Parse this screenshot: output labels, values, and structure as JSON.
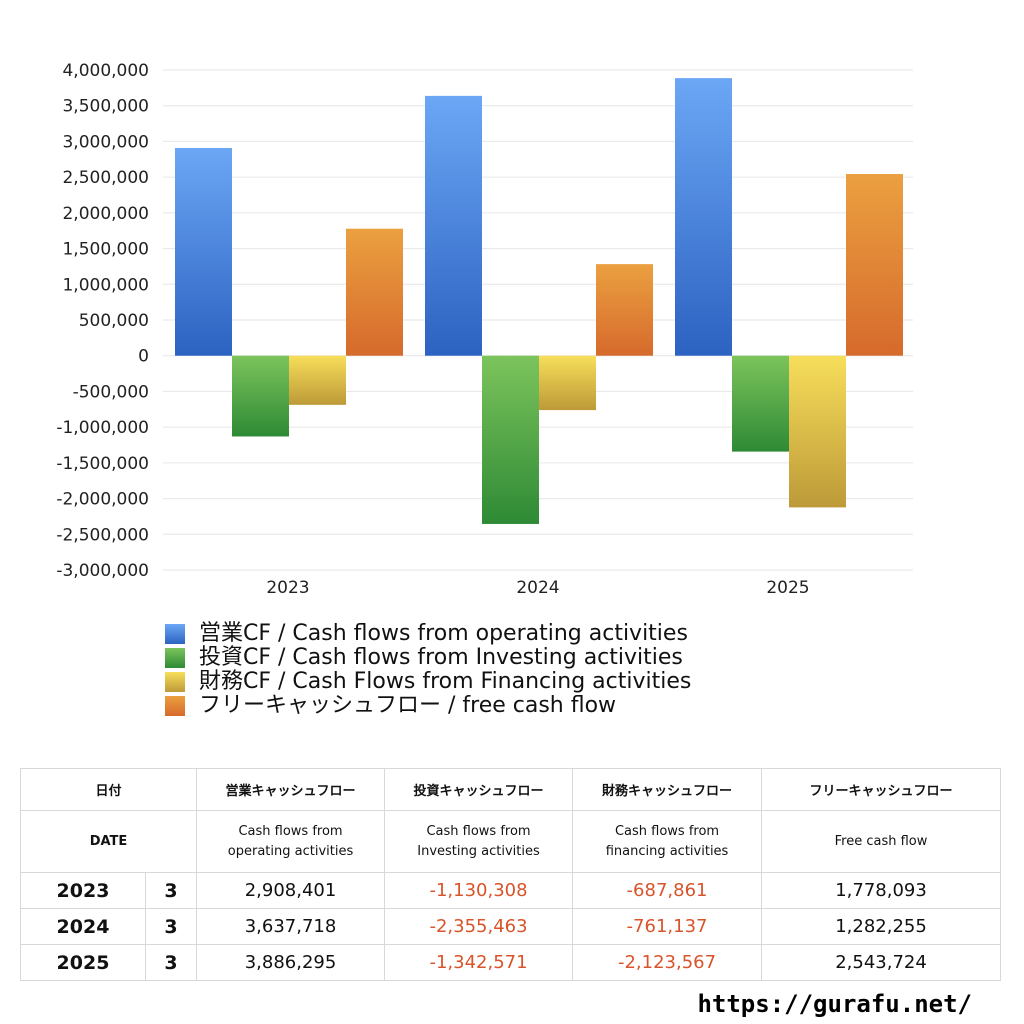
{
  "chart_data": {
    "type": "bar",
    "categories": [
      "2023",
      "2024",
      "2025"
    ],
    "series": [
      {
        "name": "営業CF / Cash flows from operating activities",
        "values": [
          2908401,
          3637718,
          3886295
        ]
      },
      {
        "name": "投資CF / Cash flows from Investing activities",
        "values": [
          -1130308,
          -2355463,
          -1342571
        ]
      },
      {
        "name": "財務CF / Cash Flows from Financing activities",
        "values": [
          -687861,
          -761137,
          -2123567
        ]
      },
      {
        "name": "フリーキャッシュフロー / free cash flow",
        "values": [
          1778093,
          1282255,
          2543724
        ]
      }
    ],
    "ylim": [
      -3000000,
      4000000
    ],
    "ytick_step": 500000,
    "grid": true,
    "legend_position": "bottom-left",
    "colors": [
      [
        "#6ba7f5",
        "#2c62c1"
      ],
      [
        "#7cc45c",
        "#2e8a35"
      ],
      [
        "#f7de5a",
        "#bd9a38"
      ],
      [
        "#eba040",
        "#d66a2c"
      ]
    ]
  },
  "table": {
    "header_jp": [
      "日付",
      "営業キャッシュフロー",
      "投資キャッシュフロー",
      "財務キャッシュフロー",
      "フリーキャッシュフロー"
    ],
    "header_en": [
      "DATE",
      [
        "Cash flows from",
        "operating activities"
      ],
      [
        "Cash flows from",
        "Investing activities"
      ],
      [
        "Cash flows from",
        "financing activities"
      ],
      "Free cash flow"
    ],
    "rows": [
      {
        "year": "2023",
        "month": "3",
        "op": "2,908,401",
        "inv": "-1,130,308",
        "fin": "-687,861",
        "fcf": "1,778,093"
      },
      {
        "year": "2024",
        "month": "3",
        "op": "3,637,718",
        "inv": "-2,355,463",
        "fin": "-761,137",
        "fcf": "1,282,255"
      },
      {
        "year": "2025",
        "month": "3",
        "op": "3,886,295",
        "inv": "-1,342,571",
        "fin": "-2,123,567",
        "fcf": "2,543,724"
      }
    ]
  },
  "footer": {
    "url": "https://gurafu.net/"
  }
}
